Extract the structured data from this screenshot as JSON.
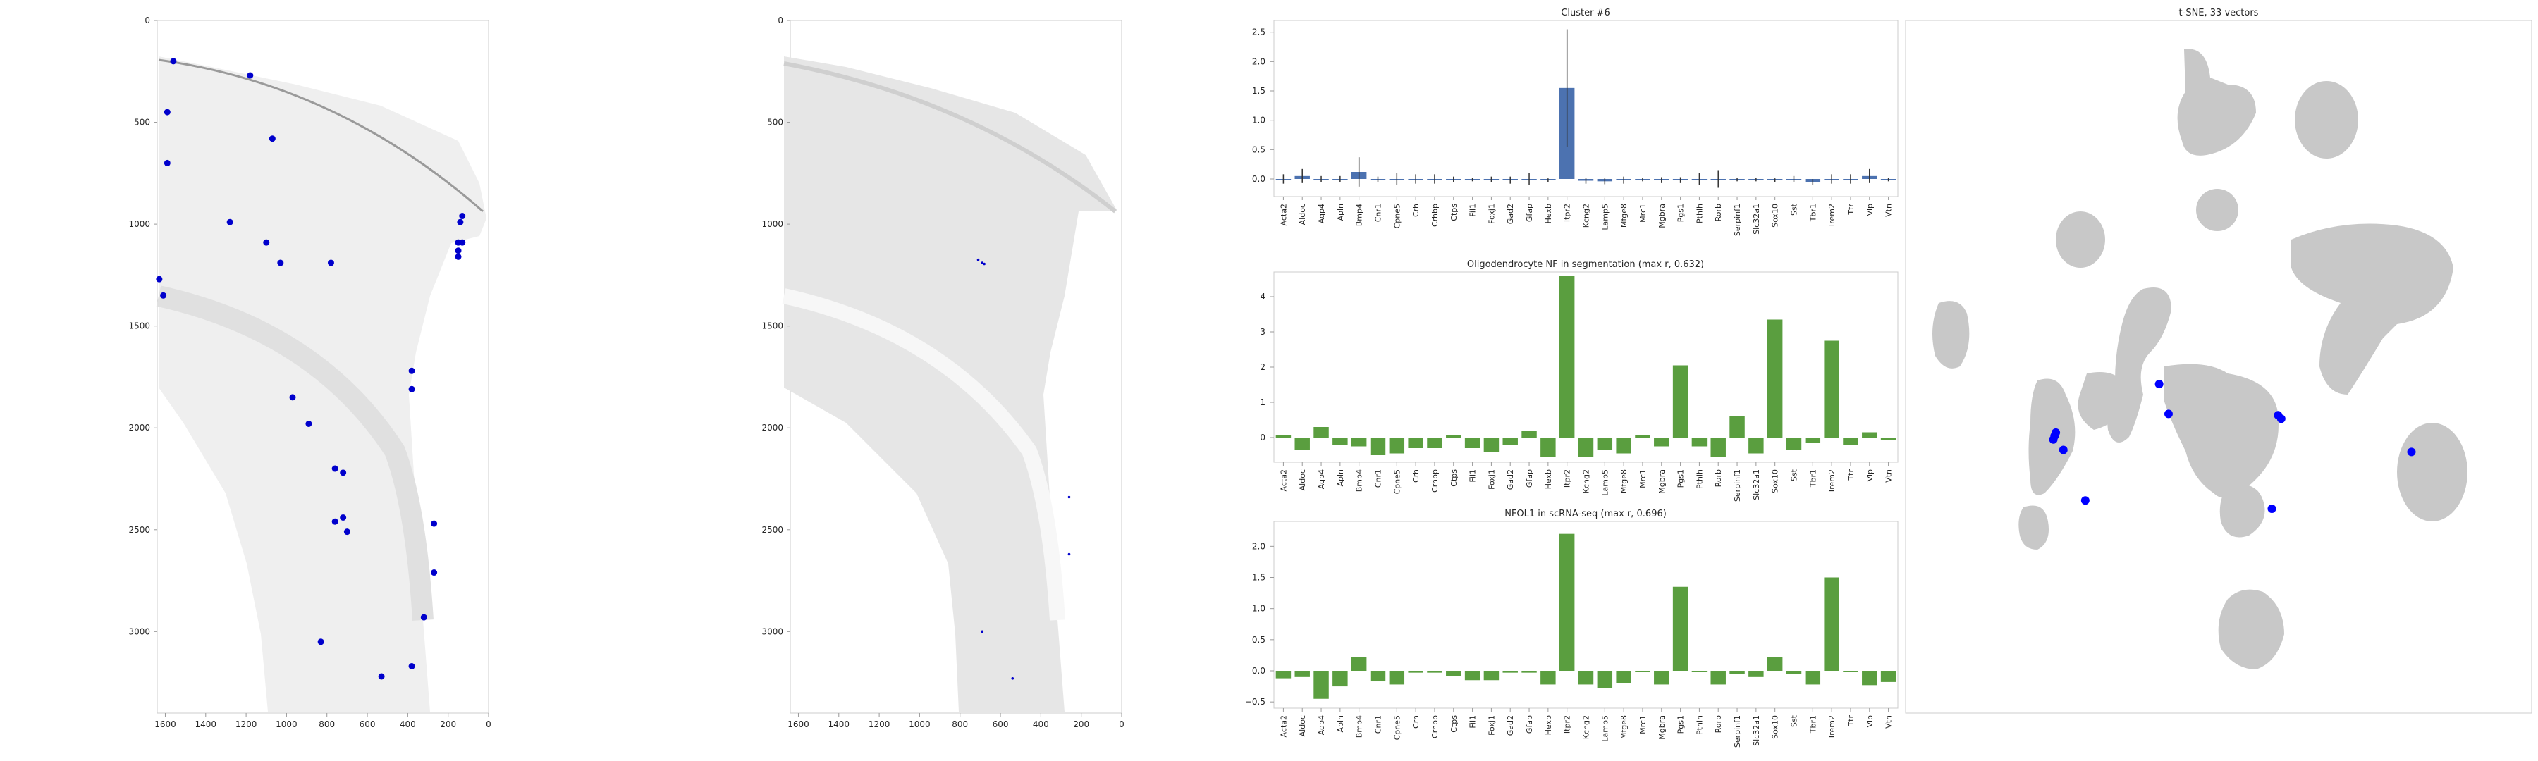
{
  "colors": {
    "background": "#ffffff",
    "frame": "#cccccc",
    "tissue": "#d9d9d9",
    "tissue_dark": "#555555",
    "highlight": "#0000cc",
    "cluster_bar": "#4c72b0",
    "nf_bar": "#5a9e3f",
    "tsne_points": "#c8c8c8",
    "tsne_highlight": "#0000ff",
    "text": "#262626"
  },
  "genes": [
    "Acta2",
    "Aldoc",
    "Aqp4",
    "Apln",
    "Bmp4",
    "Cnr1",
    "Cpne5",
    "Crh",
    "Crhbp",
    "Ctps",
    "Fil1",
    "Foxj1",
    "Gad2",
    "Gfap",
    "Hexb",
    "Itpr2",
    "Kcng2",
    "Lamp5",
    "Mfge8",
    "Mrc1",
    "Mgbra",
    "Pgs1",
    "Pthlh",
    "Rorb",
    "Serpinf1",
    "Slc32a1",
    "Sox10",
    "Sst",
    "Tbr1",
    "Trem2",
    "Ttr",
    "Vip",
    "Vtn"
  ],
  "chart_data": [
    {
      "type": "scatter",
      "panel": "spatial-highlight",
      "xlim": [
        1640,
        0
      ],
      "ylim": [
        3400,
        0
      ],
      "xticks": [
        "1600",
        "1400",
        "1200",
        "1000",
        "800",
        "600",
        "400",
        "200",
        "0"
      ],
      "yticks": [
        "0",
        "500",
        "1000",
        "1500",
        "2000",
        "2500",
        "3000"
      ],
      "series": [
        {
          "points": [
            [
              1560,
              200
            ],
            [
              1180,
              270
            ],
            [
              1590,
              450
            ],
            [
              1590,
              700
            ],
            [
              1070,
              580
            ],
            [
              1280,
              990
            ],
            [
              1100,
              1090
            ],
            [
              1030,
              1190
            ],
            [
              780,
              1190
            ],
            [
              1630,
              1270
            ],
            [
              1610,
              1350
            ],
            [
              130,
              960
            ],
            [
              140,
              990
            ],
            [
              150,
              1090
            ],
            [
              130,
              1090
            ],
            [
              150,
              1130
            ],
            [
              150,
              1160
            ],
            [
              380,
              1720
            ],
            [
              380,
              1810
            ],
            [
              970,
              1850
            ],
            [
              890,
              1980
            ],
            [
              760,
              2200
            ],
            [
              720,
              2220
            ],
            [
              720,
              2440
            ],
            [
              760,
              2460
            ],
            [
              700,
              2510
            ],
            [
              270,
              2470
            ],
            [
              270,
              2710
            ],
            [
              320,
              2930
            ],
            [
              830,
              3050
            ],
            [
              380,
              3170
            ],
            [
              530,
              3220
            ]
          ]
        }
      ]
    },
    {
      "type": "scatter",
      "panel": "spatial-detail",
      "xlim": [
        1640,
        0
      ],
      "ylim": [
        3400,
        0
      ],
      "xticks": [
        "1600",
        "1400",
        "1200",
        "1000",
        "800",
        "600",
        "400",
        "200",
        "0"
      ],
      "yticks": [
        "0",
        "500",
        "1000",
        "1500",
        "2000",
        "2500",
        "3000"
      ],
      "series": [
        {
          "points": [
            [
              710,
              1175
            ],
            [
              690,
              1190
            ],
            [
              680,
              1195
            ],
            [
              260,
              2340
            ],
            [
              260,
              2620
            ],
            [
              690,
              3000
            ],
            [
              540,
              3230
            ]
          ]
        }
      ]
    },
    {
      "type": "bar",
      "title": "Cluster #6",
      "ylim": [
        -0.3,
        2.7
      ],
      "yticks": [
        "0.0",
        "0.5",
        "1.0",
        "1.5",
        "2.0",
        "2.5"
      ],
      "ytick_values": [
        0,
        0.5,
        1.0,
        1.5,
        2.0,
        2.5
      ],
      "values": [
        0.0,
        0.05,
        0.0,
        0.0,
        0.12,
        -0.01,
        0.0,
        0.0,
        0.0,
        -0.01,
        -0.01,
        -0.01,
        -0.02,
        0.0,
        -0.02,
        1.55,
        -0.03,
        -0.04,
        -0.02,
        -0.01,
        -0.02,
        -0.02,
        0.0,
        0.0,
        -0.01,
        -0.01,
        -0.02,
        0.0,
        -0.05,
        0.0,
        0.0,
        0.05,
        -0.01
      ],
      "errors": [
        0.08,
        0.12,
        0.05,
        0.05,
        0.25,
        0.05,
        0.1,
        0.08,
        0.08,
        0.05,
        0.03,
        0.05,
        0.06,
        0.1,
        0.03,
        1.0,
        0.05,
        0.05,
        0.06,
        0.03,
        0.05,
        0.05,
        0.1,
        0.15,
        0.03,
        0.03,
        0.03,
        0.05,
        0.05,
        0.08,
        0.08,
        0.12,
        0.03
      ]
    },
    {
      "type": "bar",
      "title": "Oligodendrocyte NF in segmentation (max r, 0.632)",
      "ylim": [
        -0.7,
        4.7
      ],
      "yticks": [
        "0",
        "1",
        "2",
        "3",
        "4"
      ],
      "ytick_values": [
        0,
        1,
        2,
        3,
        4
      ],
      "values": [
        0.08,
        -0.35,
        0.3,
        -0.2,
        -0.25,
        -0.5,
        -0.45,
        -0.3,
        -0.3,
        0.07,
        -0.3,
        -0.4,
        -0.22,
        0.18,
        -0.55,
        4.6,
        -0.55,
        -0.35,
        -0.45,
        0.08,
        -0.25,
        2.05,
        -0.25,
        -0.55,
        0.62,
        -0.45,
        3.35,
        -0.35,
        -0.15,
        2.75,
        -0.2,
        0.15,
        -0.08
      ]
    },
    {
      "type": "bar",
      "title": "NFOL1 in scRNA-seq (max r, 0.696)",
      "ylim": [
        -0.6,
        2.4
      ],
      "yticks": [
        "−0.5",
        "0.0",
        "0.5",
        "1.0",
        "1.5",
        "2.0"
      ],
      "ytick_values": [
        -0.5,
        0,
        0.5,
        1.0,
        1.5,
        2.0
      ],
      "values": [
        -0.12,
        -0.1,
        -0.45,
        -0.25,
        0.22,
        -0.17,
        -0.22,
        -0.03,
        -0.03,
        -0.08,
        -0.15,
        -0.15,
        -0.03,
        -0.03,
        -0.22,
        2.2,
        -0.22,
        -0.28,
        -0.2,
        0.0,
        -0.22,
        1.35,
        0.0,
        -0.22,
        -0.05,
        -0.1,
        0.22,
        -0.05,
        -0.22,
        1.5,
        -0.01,
        -0.23,
        -0.18
      ]
    },
    {
      "type": "scatter",
      "title": "t-SNE, 33 vectors",
      "grid": false,
      "series": [
        {
          "name": "highlighted",
          "points": [
            [
              0.24,
              0.595
            ],
            [
              0.238,
              0.6
            ],
            [
              0.236,
              0.605
            ],
            [
              0.252,
              0.62
            ],
            [
              0.405,
              0.525
            ],
            [
              0.42,
              0.568
            ],
            [
              0.595,
              0.57
            ],
            [
              0.6,
              0.575
            ],
            [
              0.808,
              0.623
            ],
            [
              0.585,
              0.705
            ],
            [
              0.287,
              0.693
            ]
          ]
        }
      ]
    }
  ]
}
